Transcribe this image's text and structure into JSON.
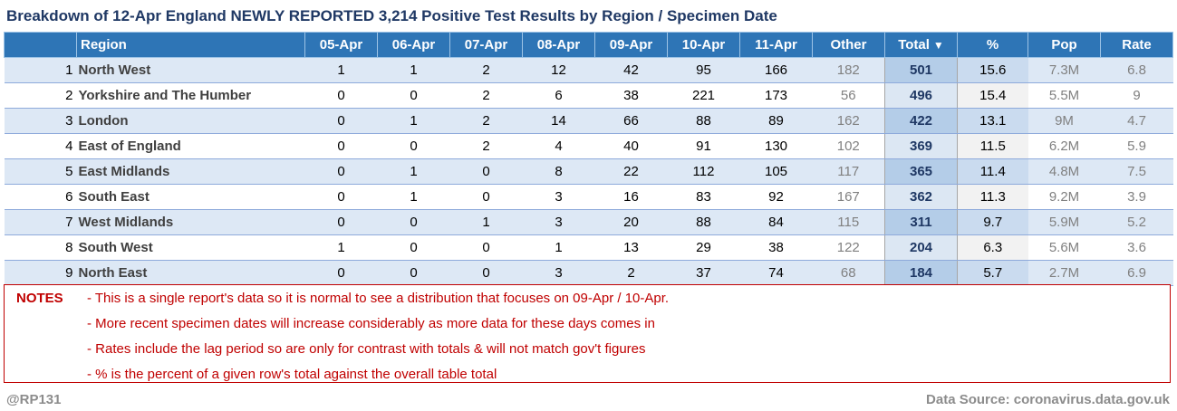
{
  "title": "Breakdown of 12-Apr England NEWLY REPORTED 3,214 Positive Test Results by Region / Specimen Date",
  "table": {
    "headers": {
      "rank": "",
      "region": "Region",
      "d1": "05-Apr",
      "d2": "06-Apr",
      "d3": "07-Apr",
      "d4": "08-Apr",
      "d5": "09-Apr",
      "d6": "10-Apr",
      "d7": "11-Apr",
      "other": "Other",
      "total": "Total",
      "total_sort_icon": "▼",
      "pct": "%",
      "pop": "Pop",
      "rate": "Rate"
    },
    "rows": [
      {
        "rank": "1",
        "region": "North West",
        "d1": "1",
        "d2": "1",
        "d3": "2",
        "d4": "12",
        "d5": "42",
        "d6": "95",
        "d7": "166",
        "other": "182",
        "total": "501",
        "pct": "15.6",
        "pop": "7.3M",
        "rate": "6.8"
      },
      {
        "rank": "2",
        "region": "Yorkshire and The Humber",
        "d1": "0",
        "d2": "0",
        "d3": "2",
        "d4": "6",
        "d5": "38",
        "d6": "221",
        "d7": "173",
        "other": "56",
        "total": "496",
        "pct": "15.4",
        "pop": "5.5M",
        "rate": "9"
      },
      {
        "rank": "3",
        "region": "London",
        "d1": "0",
        "d2": "1",
        "d3": "2",
        "d4": "14",
        "d5": "66",
        "d6": "88",
        "d7": "89",
        "other": "162",
        "total": "422",
        "pct": "13.1",
        "pop": "9M",
        "rate": "4.7"
      },
      {
        "rank": "4",
        "region": "East of England",
        "d1": "0",
        "d2": "0",
        "d3": "2",
        "d4": "4",
        "d5": "40",
        "d6": "91",
        "d7": "130",
        "other": "102",
        "total": "369",
        "pct": "11.5",
        "pop": "6.2M",
        "rate": "5.9"
      },
      {
        "rank": "5",
        "region": "East Midlands",
        "d1": "0",
        "d2": "1",
        "d3": "0",
        "d4": "8",
        "d5": "22",
        "d6": "112",
        "d7": "105",
        "other": "117",
        "total": "365",
        "pct": "11.4",
        "pop": "4.8M",
        "rate": "7.5"
      },
      {
        "rank": "6",
        "region": "South East",
        "d1": "0",
        "d2": "1",
        "d3": "0",
        "d4": "3",
        "d5": "16",
        "d6": "83",
        "d7": "92",
        "other": "167",
        "total": "362",
        "pct": "11.3",
        "pop": "9.2M",
        "rate": "3.9"
      },
      {
        "rank": "7",
        "region": "West Midlands",
        "d1": "0",
        "d2": "0",
        "d3": "1",
        "d4": "3",
        "d5": "20",
        "d6": "88",
        "d7": "84",
        "other": "115",
        "total": "311",
        "pct": "9.7",
        "pop": "5.9M",
        "rate": "5.2"
      },
      {
        "rank": "8",
        "region": "South West",
        "d1": "1",
        "d2": "0",
        "d3": "0",
        "d4": "1",
        "d5": "13",
        "d6": "29",
        "d7": "38",
        "other": "122",
        "total": "204",
        "pct": "6.3",
        "pop": "5.6M",
        "rate": "3.6"
      },
      {
        "rank": "9",
        "region": "North East",
        "d1": "0",
        "d2": "0",
        "d3": "0",
        "d4": "3",
        "d5": "2",
        "d6": "37",
        "d7": "74",
        "other": "68",
        "total": "184",
        "pct": "5.7",
        "pop": "2.7M",
        "rate": "6.9"
      }
    ]
  },
  "notes": {
    "label": "NOTES",
    "lines": [
      "- This is a single report's data so it is normal to see a distribution that focuses on 09-Apr / 10-Apr.",
      "- More recent specimen dates will increase considerably as more data for these days comes in",
      "- Rates include the lag period so are only for contrast with totals & will not match gov't figures",
      "- % is the percent of a given row's total against the overall table total"
    ]
  },
  "footer": {
    "handle": "@RP131",
    "source": "Data Source: coronavirus.data.gov.uk"
  },
  "colors": {
    "header_bg": "#2e75b6",
    "title": "#1f3864",
    "notes": "#c00000",
    "row_alt": "#dde8f5"
  }
}
